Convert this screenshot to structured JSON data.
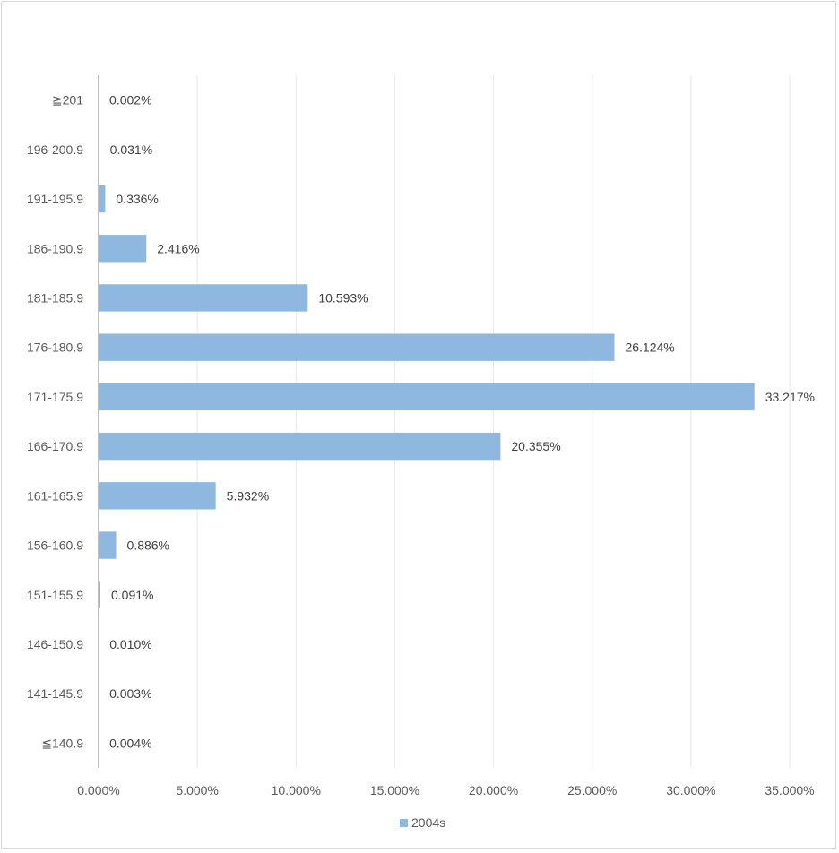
{
  "chart_data": {
    "type": "bar",
    "orientation": "horizontal",
    "categories": [
      "≦140.9",
      "141-145.9",
      "146-150.9",
      "151-155.9",
      "156-160.9",
      "161-165.9",
      "166-170.9",
      "171-175.9",
      "176-180.9",
      "181-185.9",
      "186-190.9",
      "191-195.9",
      "196-200.9",
      "≧201"
    ],
    "series": [
      {
        "name": "2004s",
        "values": [
          0.004,
          0.003,
          0.01,
          0.091,
          0.886,
          5.932,
          20.355,
          33.217,
          26.124,
          10.593,
          2.416,
          0.336,
          0.031,
          0.002
        ],
        "labels": [
          "0.004%",
          "0.003%",
          "0.010%",
          "0.091%",
          "0.886%",
          "5.932%",
          "20.355%",
          "33.217%",
          "26.124%",
          "10.593%",
          "2.416%",
          "0.336%",
          "0.031%",
          "0.002%"
        ]
      }
    ],
    "x_ticks": [
      "0.000%",
      "5.000%",
      "10.000%",
      "15.000%",
      "20.000%",
      "25.000%",
      "30.000%",
      "35.000%"
    ],
    "xlim": [
      0,
      35
    ],
    "grid": "vertical",
    "legend": "bottom",
    "bar_color": "#8fb8e0",
    "title": "",
    "xlabel": "",
    "ylabel": ""
  }
}
